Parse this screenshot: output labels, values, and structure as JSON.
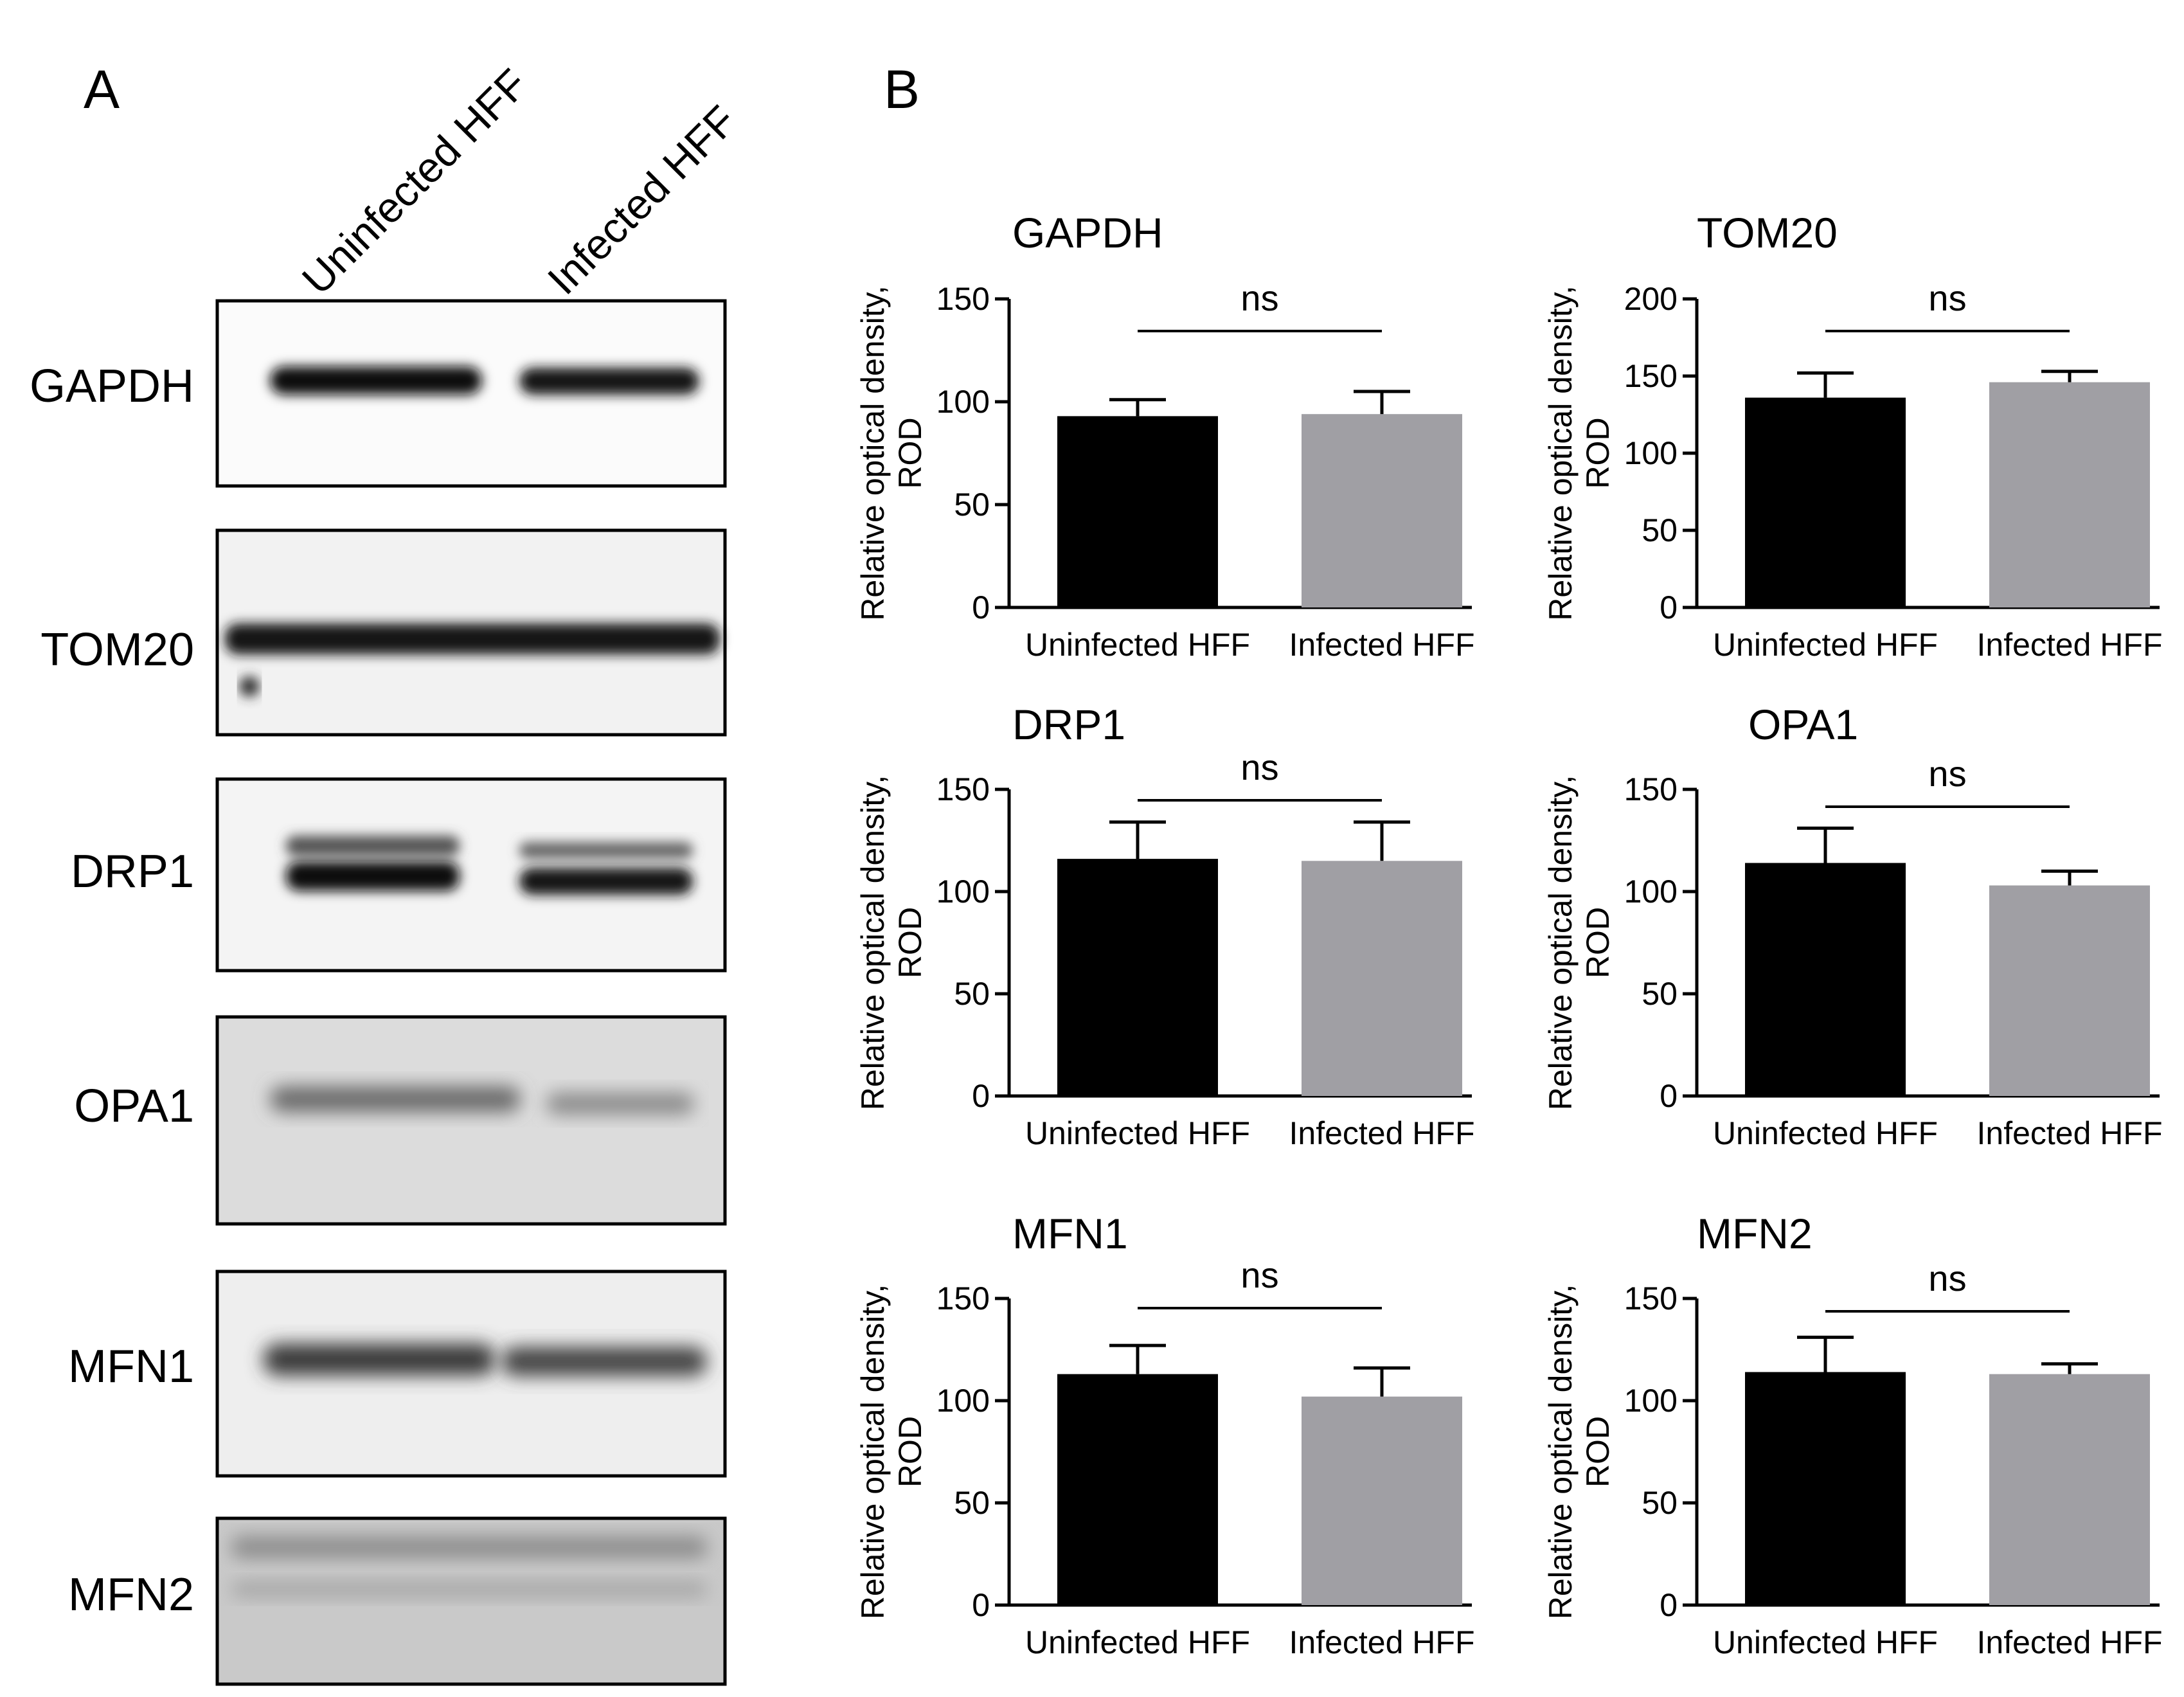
{
  "panel_a": {
    "letter": "A",
    "lane_labels": [
      "Uninfected HFF",
      "Infected HFF"
    ],
    "blots": [
      {
        "label": "GAPDH"
      },
      {
        "label": "TOM20"
      },
      {
        "label": "DRP1"
      },
      {
        "label": "OPA1"
      },
      {
        "label": "MFN1"
      },
      {
        "label": "MFN2"
      }
    ]
  },
  "panel_b": {
    "letter": "B",
    "ylabel_line1": "Relative optical density,",
    "ylabel_line2": "ROD"
  },
  "colors": {
    "bar_uninfected": "#000000",
    "bar_infected": "#a09fa4",
    "axis": "#000000"
  },
  "chart_data": [
    {
      "type": "bar",
      "title": "GAPDH",
      "categories": [
        "Uninfected HFF",
        "Infected HFF"
      ],
      "values": [
        93,
        94
      ],
      "error": [
        8,
        11
      ],
      "ylim": [
        0,
        150
      ],
      "yticks": [
        0,
        50,
        100,
        150
      ],
      "ylabel": "Relative optical density, ROD",
      "annotation": "ns"
    },
    {
      "type": "bar",
      "title": "TOM20",
      "categories": [
        "Uninfected HFF",
        "Infected HFF"
      ],
      "values": [
        136,
        146
      ],
      "error": [
        16,
        7
      ],
      "ylim": [
        0,
        200
      ],
      "yticks": [
        0,
        50,
        100,
        150,
        200
      ],
      "ylabel": "Relative optical density, ROD",
      "annotation": "ns"
    },
    {
      "type": "bar",
      "title": "DRP1",
      "categories": [
        "Uninfected HFF",
        "Infected HFF"
      ],
      "values": [
        116,
        115
      ],
      "error": [
        18,
        19
      ],
      "ylim": [
        0,
        150
      ],
      "yticks": [
        0,
        50,
        100,
        150
      ],
      "ylabel": "Relative optical density, ROD",
      "annotation": "ns"
    },
    {
      "type": "bar",
      "title": "OPA1",
      "categories": [
        "Uninfected HFF",
        "Infected HFF"
      ],
      "values": [
        114,
        103
      ],
      "error": [
        17,
        7
      ],
      "ylim": [
        0,
        150
      ],
      "yticks": [
        0,
        50,
        100,
        150
      ],
      "ylabel": "Relative optical density, ROD",
      "annotation": "ns"
    },
    {
      "type": "bar",
      "title": "MFN1",
      "categories": [
        "Uninfected HFF",
        "Infected HFF"
      ],
      "values": [
        113,
        102
      ],
      "error": [
        14,
        14
      ],
      "ylim": [
        0,
        150
      ],
      "yticks": [
        0,
        50,
        100,
        150
      ],
      "ylabel": "Relative optical density, ROD",
      "annotation": "ns"
    },
    {
      "type": "bar",
      "title": "MFN2",
      "categories": [
        "Uninfected HFF",
        "Infected HFF"
      ],
      "values": [
        114,
        113
      ],
      "error": [
        17,
        5
      ],
      "ylim": [
        0,
        150
      ],
      "yticks": [
        0,
        50,
        100,
        150
      ],
      "ylabel": "Relative optical density, ROD",
      "annotation": "ns"
    }
  ]
}
